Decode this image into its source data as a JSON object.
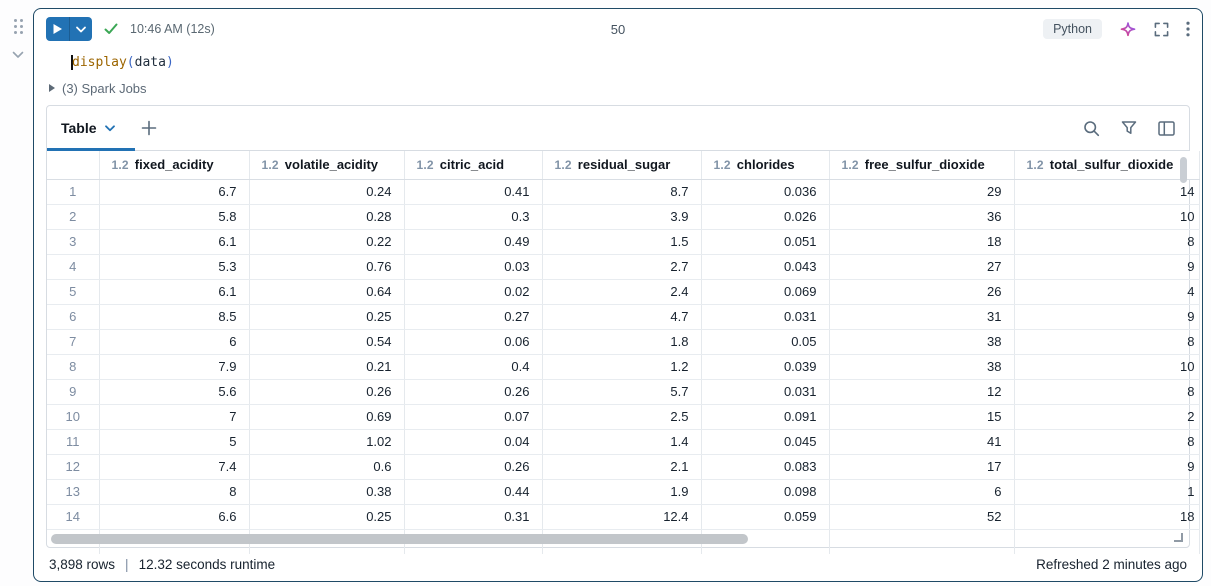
{
  "toolbar": {
    "status_time": "10:46 AM (12s)",
    "cell_number": "50",
    "language_label": "Python"
  },
  "code": {
    "function_name": "display",
    "paren_open": "(",
    "argument": "data",
    "paren_close": ")"
  },
  "spark_jobs_label": "(3) Spark Jobs",
  "results": {
    "active_tab_label": "Table",
    "columns": [
      {
        "type": "1.2",
        "name": "fixed_acidity"
      },
      {
        "type": "1.2",
        "name": "volatile_acidity"
      },
      {
        "type": "1.2",
        "name": "citric_acid"
      },
      {
        "type": "1.2",
        "name": "residual_sugar"
      },
      {
        "type": "1.2",
        "name": "chlorides"
      },
      {
        "type": "1.2",
        "name": "free_sulfur_dioxide"
      },
      {
        "type": "1.2",
        "name": "total_sulfur_dioxide"
      }
    ],
    "rows": [
      {
        "n": "1",
        "values": [
          "6.7",
          "0.24",
          "0.41",
          "8.7",
          "0.036",
          "29",
          "14"
        ]
      },
      {
        "n": "2",
        "values": [
          "5.8",
          "0.28",
          "0.3",
          "3.9",
          "0.026",
          "36",
          "10"
        ]
      },
      {
        "n": "3",
        "values": [
          "6.1",
          "0.22",
          "0.49",
          "1.5",
          "0.051",
          "18",
          "8"
        ]
      },
      {
        "n": "4",
        "values": [
          "5.3",
          "0.76",
          "0.03",
          "2.7",
          "0.043",
          "27",
          "9"
        ]
      },
      {
        "n": "5",
        "values": [
          "6.1",
          "0.64",
          "0.02",
          "2.4",
          "0.069",
          "26",
          "4"
        ]
      },
      {
        "n": "6",
        "values": [
          "8.5",
          "0.25",
          "0.27",
          "4.7",
          "0.031",
          "31",
          "9"
        ]
      },
      {
        "n": "7",
        "values": [
          "6",
          "0.54",
          "0.06",
          "1.8",
          "0.05",
          "38",
          "8"
        ]
      },
      {
        "n": "8",
        "values": [
          "7.9",
          "0.21",
          "0.4",
          "1.2",
          "0.039",
          "38",
          "10"
        ]
      },
      {
        "n": "9",
        "values": [
          "5.6",
          "0.26",
          "0.26",
          "5.7",
          "0.031",
          "12",
          "8"
        ]
      },
      {
        "n": "10",
        "values": [
          "7",
          "0.69",
          "0.07",
          "2.5",
          "0.091",
          "15",
          "2"
        ]
      },
      {
        "n": "11",
        "values": [
          "5",
          "1.02",
          "0.04",
          "1.4",
          "0.045",
          "41",
          "8"
        ]
      },
      {
        "n": "12",
        "values": [
          "7.4",
          "0.6",
          "0.26",
          "2.1",
          "0.083",
          "17",
          "9"
        ]
      },
      {
        "n": "13",
        "values": [
          "8",
          "0.38",
          "0.44",
          "1.9",
          "0.098",
          "6",
          "1"
        ]
      },
      {
        "n": "14",
        "values": [
          "6.6",
          "0.25",
          "0.31",
          "12.4",
          "0.059",
          "52",
          "18"
        ]
      }
    ]
  },
  "footer": {
    "rows_count": "3,898 rows",
    "separator": "|",
    "runtime": "12.32 seconds runtime",
    "refreshed": "Refreshed 2 minutes ago"
  },
  "colors": {
    "accent_blue": "#2272b4",
    "success_green": "#3ba755",
    "focused_cell_border": "#1f4a66",
    "type_label_gray": "#8193a7"
  }
}
